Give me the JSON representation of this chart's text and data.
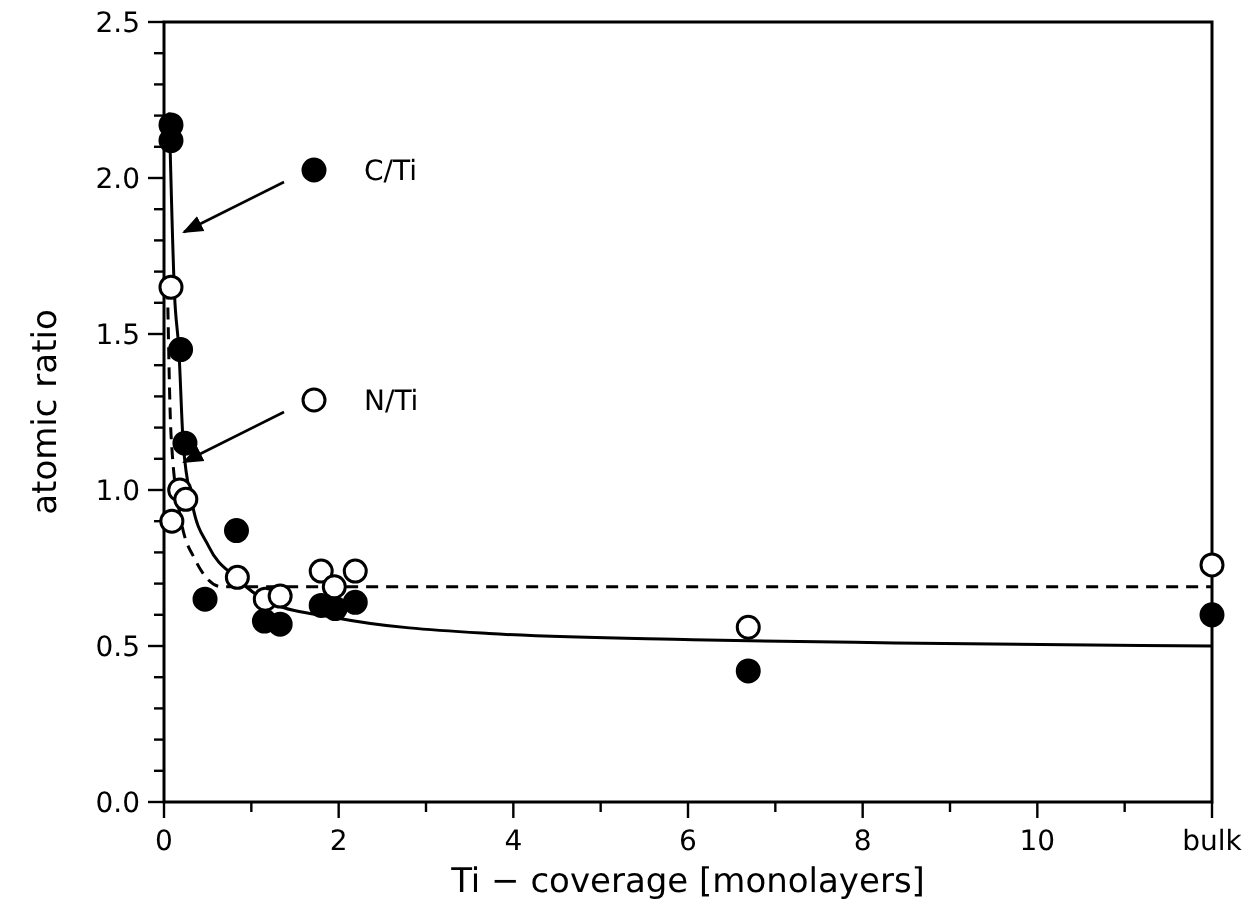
{
  "chart_data": {
    "type": "scatter",
    "xlabel": "Ti − coverage [monolayers]",
    "ylabel": "atomic ratio",
    "xlim": [
      0,
      12
    ],
    "ylim": [
      0,
      2.5
    ],
    "xticks": [
      0,
      {
        "value": 1,
        "label": null
      },
      2,
      {
        "value": 3,
        "label": null
      },
      4,
      {
        "value": 5,
        "label": null
      },
      6,
      {
        "value": 7,
        "label": null
      },
      8,
      {
        "value": 9,
        "label": null
      },
      10,
      {
        "value": 11,
        "label": null
      },
      {
        "value": 12,
        "label": "bulk"
      }
    ],
    "yticks": [
      {
        "value": 0,
        "label": "0.0"
      },
      {
        "value": 0.1,
        "label": null
      },
      {
        "value": 0.2,
        "label": null
      },
      {
        "value": 0.3,
        "label": null
      },
      {
        "value": 0.4,
        "label": null
      },
      0.5,
      {
        "value": 0.6,
        "label": null
      },
      {
        "value": 0.7,
        "label": null
      },
      {
        "value": 0.8,
        "label": null
      },
      {
        "value": 0.9,
        "label": null
      },
      {
        "value": 1,
        "label": "1.0"
      },
      {
        "value": 1.1,
        "label": null
      },
      {
        "value": 1.2,
        "label": null
      },
      {
        "value": 1.3,
        "label": null
      },
      {
        "value": 1.4,
        "label": null
      },
      1.5,
      {
        "value": 1.6,
        "label": null
      },
      {
        "value": 1.7,
        "label": null
      },
      {
        "value": 1.8,
        "label": null
      },
      {
        "value": 1.9,
        "label": null
      },
      {
        "value": 2,
        "label": "2.0"
      },
      {
        "value": 2.1,
        "label": null
      },
      {
        "value": 2.2,
        "label": null
      },
      {
        "value": 2.3,
        "label": null
      },
      {
        "value": 2.4,
        "label": null
      },
      2.5
    ],
    "grid": false,
    "legend": "top left",
    "series": [
      {
        "name": "C/Ti",
        "marker": "circle",
        "color": "#000000",
        "x": [
          0.08,
          0.08,
          0.19,
          0.24,
          0.83,
          0.47,
          1.15,
          1.33,
          1.8,
          1.96,
          2.19,
          6.69,
          12
        ],
        "values": [
          2.17,
          2.12,
          1.45,
          1.15,
          0.87,
          0.65,
          0.58,
          0.57,
          0.63,
          0.62,
          0.64,
          0.42,
          0.6
        ]
      },
      {
        "name": "N/Ti",
        "marker": "circle",
        "color": "#ffffff",
        "x": [
          0.08,
          0.09,
          0.18,
          0.25,
          0.84,
          1.16,
          1.33,
          1.8,
          1.95,
          2.19,
          6.69,
          12
        ],
        "values": [
          1.65,
          0.9,
          1.0,
          0.97,
          0.72,
          0.65,
          0.66,
          0.74,
          0.69,
          0.74,
          0.56,
          0.76
        ]
      },
      {
        "type": "line",
        "color": "#000000",
        "line_style": "solid",
        "x": [
          0.06,
          0.12,
          0.17,
          0.22,
          0.32,
          0.51,
          0.82,
          1.21,
          1.98,
          3.72,
          6.05,
          8.37,
          12
        ],
        "values": [
          2.21,
          1.63,
          1.45,
          1.15,
          0.96,
          0.82,
          0.72,
          0.64,
          0.59,
          0.54,
          0.52,
          0.51,
          0.5
        ]
      },
      {
        "type": "line",
        "color": "#000000",
        "line_style": "dashed",
        "x": [
          0.04,
          0.08,
          0.19,
          0.35,
          0.66,
          12
        ],
        "values": [
          1.65,
          1.18,
          0.91,
          0.78,
          0.69,
          0.69
        ]
      }
    ]
  }
}
